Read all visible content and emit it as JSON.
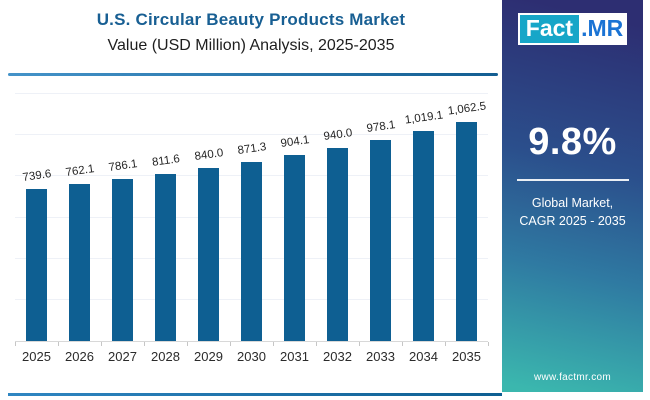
{
  "header": {
    "title": "U.S. Circular Beauty Products Market",
    "subtitle": "Value (USD Million) Analysis, 2025-2035"
  },
  "brand": {
    "logo_fact": "Fact",
    "logo_mr": ".MR",
    "website": "www.factmr.com"
  },
  "sidebar": {
    "stat_value": "9.8%",
    "stat_caption_line1": "Global Market,",
    "stat_caption_line2": "CAGR 2025 - 2035"
  },
  "chart_data": {
    "type": "bar",
    "title": "U.S. Circular Beauty Products Market Value (USD Million) Analysis, 2025-2035",
    "xlabel": "",
    "ylabel": "Value (USD Million)",
    "categories": [
      "2025",
      "2026",
      "2027",
      "2028",
      "2029",
      "2030",
      "2031",
      "2032",
      "2033",
      "2034",
      "2035"
    ],
    "values": [
      739.6,
      762.1,
      786.1,
      811.6,
      840.0,
      871.3,
      904.1,
      940.0,
      978.1,
      1019.1,
      1062.5
    ],
    "labels": [
      "739.6",
      "762.1",
      "786.1",
      "811.6",
      "840.0",
      "871.3",
      "904.1",
      "940.0",
      "978.1",
      "1,019.1",
      "1,062.5"
    ],
    "ylim": [
      0,
      1200
    ],
    "gridline_step": 200,
    "grid": true,
    "legend_position": "none",
    "bar_color": "#0e5f92"
  },
  "colors": {
    "title_blue": "#185f93",
    "bar_blue": "#0e5f92",
    "logo_teal": "#17a6c8",
    "logo_blue": "#1a73d4",
    "sidebar_gradient_top": "#2d2e72",
    "sidebar_gradient_bottom": "#3bb7ae",
    "gridline": "#eef1f7",
    "axis": "#d8d8d8"
  }
}
